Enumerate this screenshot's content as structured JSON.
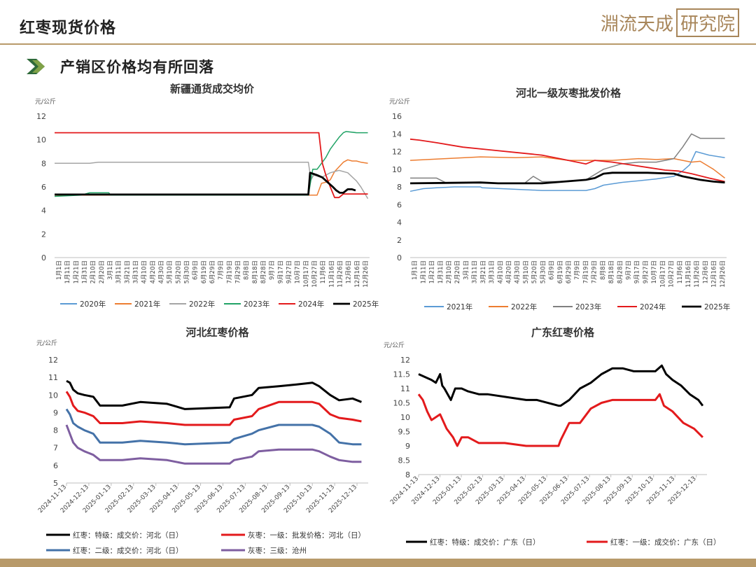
{
  "header": {
    "title": "红枣现货价格",
    "logo_text": "淵流天成",
    "logo_box_text": "研究院"
  },
  "subheading": {
    "text": "产销区价格均有所回落"
  },
  "chart_data": [
    {
      "id": "xj",
      "type": "line",
      "title": "新疆通货成交均价",
      "ylabel": "元/公斤",
      "ylim": [
        0,
        12
      ],
      "yticks": [
        0,
        2,
        4,
        6,
        8,
        10,
        12
      ],
      "grid": false,
      "legend": "bottom",
      "x_tick_labels": [
        "1月1日",
        "1月11日",
        "1月21日",
        "1月31日",
        "2月10日",
        "2月20日",
        "3月1日",
        "3月11日",
        "3月21日",
        "3月31日",
        "4月10日",
        "4月20日",
        "4月30日",
        "5月10日",
        "5月20日",
        "5月30日",
        "6月9日",
        "6月19日",
        "6月29日",
        "7月9日",
        "7月19日",
        "7月29日",
        "8月8日",
        "8月18日",
        "8月28日",
        "9月7日",
        "9月17日",
        "9月27日",
        "10月7日",
        "10月17日",
        "10月27日",
        "11月6日",
        "11月16日",
        "11月26日",
        "12月6日",
        "12月16日",
        "12月26日"
      ],
      "x_domain": [
        0,
        360
      ],
      "series": [
        {
          "name": "2020年",
          "color": "#5b9bd5",
          "width": 1.5,
          "x": [
            0
          ],
          "y": [
            5.3
          ]
        },
        {
          "name": "2021年",
          "color": "#ed7d31",
          "width": 1.5,
          "x": [
            0,
            300,
            305,
            310,
            315,
            320,
            325,
            330,
            335,
            340,
            345,
            350,
            358
          ],
          "y": [
            5.3,
            5.3,
            6.3,
            6.4,
            6.6,
            7.3,
            7.7,
            8.1,
            8.3,
            8.2,
            8.2,
            8.1,
            8.0
          ]
        },
        {
          "name": "2022年",
          "color": "#a5a5a5",
          "width": 1.5,
          "x": [
            0,
            40,
            50,
            60,
            290,
            293,
            296,
            305,
            315,
            325,
            335,
            345,
            350,
            358
          ],
          "y": [
            8.0,
            8.0,
            8.1,
            8.1,
            8.1,
            6.6,
            7.0,
            6.8,
            7.2,
            7.4,
            7.2,
            6.5,
            6.0,
            5.0
          ]
        },
        {
          "name": "2023年",
          "color": "#21a366",
          "width": 1.5,
          "x": [
            0,
            30,
            40,
            62,
            64,
            290,
            295,
            300,
            305,
            310,
            315,
            320,
            325,
            330,
            333,
            345,
            358
          ],
          "y": [
            5.2,
            5.3,
            5.5,
            5.5,
            5.3,
            5.3,
            7.5,
            7.5,
            8.0,
            8.5,
            9.2,
            9.7,
            10.2,
            10.6,
            10.7,
            10.6,
            10.6
          ]
        },
        {
          "name": "2024年",
          "color": "#e31a1c",
          "width": 1.8,
          "x": [
            0,
            302,
            306,
            310,
            315,
            320,
            325,
            330,
            340,
            358
          ],
          "y": [
            10.6,
            10.6,
            8.0,
            7.0,
            6.0,
            5.1,
            5.1,
            5.4,
            5.4,
            5.4
          ]
        },
        {
          "name": "2025年",
          "color": "#000000",
          "width": 2.8,
          "x": [
            0,
            290,
            292,
            296,
            300,
            306,
            312,
            318,
            322,
            326,
            330,
            335,
            340,
            344
          ],
          "y": [
            5.35,
            5.35,
            7.2,
            7.1,
            7.0,
            6.8,
            6.4,
            6.0,
            5.7,
            5.5,
            5.5,
            5.8,
            5.8,
            5.7
          ]
        }
      ]
    },
    {
      "id": "hb1",
      "type": "line",
      "title": "河北一级灰枣批发价格",
      "ylabel": "元/公斤",
      "ylim": [
        0,
        16
      ],
      "yticks": [
        0,
        2,
        4,
        6,
        8,
        10,
        12,
        14,
        16
      ],
      "grid": false,
      "legend": "bottom",
      "x_tick_labels": [
        "1月1日",
        "1月11日",
        "1月21日",
        "1月31日",
        "2月10日",
        "2月20日",
        "3月1日",
        "3月11日",
        "3月21日",
        "3月31日",
        "4月10日",
        "4月20日",
        "4月30日",
        "5月10日",
        "5月20日",
        "5月30日",
        "6月9日",
        "6月19日",
        "6月29日",
        "7月9日",
        "7月19日",
        "7月29日",
        "8月8日",
        "8月18日",
        "8月28日",
        "9月7日",
        "9月17日",
        "9月27日",
        "10月7日",
        "10月17日",
        "10月27日",
        "11月6日",
        "11月16日",
        "11月26日",
        "12月6日",
        "12月16日",
        "12月26日"
      ],
      "x_domain": [
        0,
        360
      ],
      "series": [
        {
          "name": "2021年",
          "color": "#5b9bd5",
          "width": 1.5,
          "x": [
            0,
            15,
            30,
            50,
            80,
            82,
            150,
            200,
            210,
            220,
            240,
            260,
            280,
            300,
            310,
            318,
            325,
            340,
            358
          ],
          "y": [
            7.5,
            7.8,
            7.9,
            8.0,
            8.0,
            7.9,
            7.6,
            7.6,
            7.8,
            8.2,
            8.5,
            8.7,
            8.9,
            9.2,
            9.8,
            10.5,
            12.0,
            11.6,
            11.3
          ]
        },
        {
          "name": "2022年",
          "color": "#ed7d31",
          "width": 1.5,
          "x": [
            0,
            40,
            80,
            120,
            150,
            180,
            200,
            230,
            260,
            280,
            300,
            305,
            320,
            330,
            345,
            358
          ],
          "y": [
            11.0,
            11.2,
            11.4,
            11.3,
            11.4,
            11.0,
            11.0,
            11.0,
            11.2,
            11.1,
            11.2,
            11.1,
            10.8,
            10.9,
            10.0,
            9.0
          ]
        },
        {
          "name": "2023年",
          "color": "#808080",
          "width": 1.5,
          "x": [
            0,
            30,
            40,
            60,
            100,
            130,
            140,
            150,
            180,
            200,
            220,
            240,
            260,
            280,
            300,
            310,
            320,
            330,
            340,
            358
          ],
          "y": [
            9.0,
            9.0,
            8.5,
            8.5,
            8.4,
            8.4,
            9.2,
            8.6,
            8.6,
            8.8,
            10.0,
            10.6,
            10.8,
            10.8,
            11.2,
            12.5,
            14.0,
            13.5,
            13.5,
            13.5
          ]
        },
        {
          "name": "2024年",
          "color": "#e31a1c",
          "width": 1.8,
          "x": [
            0,
            10,
            30,
            60,
            90,
            120,
            150,
            180,
            200,
            210,
            230,
            250,
            270,
            290,
            305,
            320,
            340,
            358
          ],
          "y": [
            13.4,
            13.3,
            13.0,
            12.5,
            12.2,
            11.9,
            11.6,
            11.0,
            10.6,
            11.0,
            10.8,
            10.5,
            10.2,
            9.9,
            9.8,
            9.5,
            9.0,
            8.6
          ]
        },
        {
          "name": "2025年",
          "color": "#000000",
          "width": 2.8,
          "x": [
            0,
            80,
            100,
            150,
            200,
            210,
            220,
            230,
            240,
            270,
            300,
            310,
            320,
            330,
            345,
            358
          ],
          "y": [
            8.4,
            8.5,
            8.4,
            8.4,
            8.8,
            9.0,
            9.5,
            9.6,
            9.6,
            9.6,
            9.5,
            9.2,
            9.0,
            8.8,
            8.6,
            8.5
          ]
        }
      ]
    },
    {
      "id": "hbhz",
      "type": "line",
      "title": "河北红枣价格",
      "ylabel": "元/公斤",
      "ylim": [
        5,
        12
      ],
      "yticks": [
        5,
        6,
        7,
        8,
        9,
        10,
        11,
        12
      ],
      "grid": false,
      "legend": "bottom",
      "x_tick_labels": [
        "2024-11-13",
        "2024-12-13",
        "2025-01-13",
        "2025-02-13",
        "2025-03-13",
        "2025-04-13",
        "2025-05-13",
        "2025-06-13",
        "2025-07-13",
        "2025-08-13",
        "2025-09-13",
        "2025-10-13",
        "2025-11-13",
        "2025-12-13"
      ],
      "x_domain": [
        0,
        13.5
      ],
      "series": [
        {
          "name": "红枣：特级：成交价：河北（日）",
          "color": "#000000",
          "width": 3,
          "x": [
            0,
            0.15,
            0.3,
            0.5,
            0.8,
            1.2,
            1.5,
            2.5,
            3.3,
            4.5,
            5.3,
            7.3,
            7.5,
            8.3,
            8.6,
            9.5,
            10.3,
            11.0,
            11.3,
            11.8,
            12.2,
            12.8,
            13.2
          ],
          "y": [
            10.8,
            10.7,
            10.3,
            10.1,
            10.0,
            9.9,
            9.4,
            9.4,
            9.6,
            9.5,
            9.2,
            9.3,
            9.8,
            10.0,
            10.4,
            10.5,
            10.6,
            10.7,
            10.5,
            10.0,
            9.7,
            9.8,
            9.6
          ]
        },
        {
          "name": "灰枣：一级：批发价格：河北（日）",
          "color": "#e31a1c",
          "width": 3,
          "x": [
            0,
            0.15,
            0.3,
            0.5,
            0.8,
            1.2,
            1.5,
            2.5,
            3.3,
            4.5,
            5.3,
            7.3,
            7.5,
            8.3,
            8.6,
            9.5,
            10.3,
            11.0,
            11.3,
            11.8,
            12.2,
            12.8,
            13.2
          ],
          "y": [
            10.2,
            9.9,
            9.4,
            9.1,
            9.0,
            8.8,
            8.4,
            8.4,
            8.5,
            8.4,
            8.3,
            8.3,
            8.6,
            8.8,
            9.2,
            9.6,
            9.6,
            9.6,
            9.5,
            8.9,
            8.7,
            8.6,
            8.5
          ]
        },
        {
          "name": "红枣：二级：成交价：河北（日）",
          "color": "#4472a8",
          "width": 3,
          "x": [
            0,
            0.15,
            0.3,
            0.5,
            0.8,
            1.2,
            1.5,
            2.5,
            3.3,
            4.5,
            5.3,
            7.3,
            7.5,
            8.3,
            8.6,
            9.5,
            10.3,
            11.0,
            11.3,
            11.8,
            12.2,
            12.8,
            13.2
          ],
          "y": [
            9.2,
            8.9,
            8.4,
            8.2,
            8.0,
            7.8,
            7.3,
            7.3,
            7.4,
            7.3,
            7.2,
            7.3,
            7.5,
            7.8,
            8.0,
            8.3,
            8.3,
            8.3,
            8.2,
            7.8,
            7.3,
            7.2,
            7.2
          ]
        },
        {
          "name": "灰枣：三级：沧州",
          "color": "#7e5ea0",
          "width": 3,
          "x": [
            0,
            0.15,
            0.3,
            0.5,
            0.8,
            1.2,
            1.5,
            2.5,
            3.3,
            4.5,
            5.3,
            7.3,
            7.5,
            8.3,
            8.6,
            9.5,
            10.3,
            11.0,
            11.3,
            11.8,
            12.2,
            12.8,
            13.2
          ],
          "y": [
            8.3,
            7.8,
            7.3,
            7.0,
            6.8,
            6.6,
            6.3,
            6.3,
            6.4,
            6.3,
            6.1,
            6.1,
            6.3,
            6.5,
            6.8,
            6.9,
            6.9,
            6.9,
            6.8,
            6.5,
            6.3,
            6.2,
            6.2
          ]
        }
      ]
    },
    {
      "id": "gd",
      "type": "line",
      "title": "广东红枣价格",
      "ylabel": "元/公斤",
      "ylim": [
        8,
        12
      ],
      "yticks": [
        8,
        8.5,
        9,
        9.5,
        10,
        10.5,
        11,
        11.5,
        12
      ],
      "grid": false,
      "legend": "bottom",
      "x_tick_labels": [
        "2024-11-13",
        "2024-12-13",
        "2025-01-13",
        "2025-02-13",
        "2025-03-13",
        "2025-04-13",
        "2025-05-13",
        "2025-06-13",
        "2025-07-13",
        "2025-08-13",
        "2025-09-13",
        "2025-10-13",
        "2025-11-13",
        "2025-12-13"
      ],
      "x_domain": [
        0,
        13.4
      ],
      "series": [
        {
          "name": "红枣：特级：成交价：广东（日）",
          "color": "#000000",
          "width": 3,
          "x": [
            0,
            0.3,
            0.6,
            0.8,
            1.0,
            1.1,
            1.2,
            1.5,
            1.7,
            2.0,
            2.3,
            2.8,
            3.2,
            5.0,
            5.5,
            6.5,
            6.6,
            7.0,
            7.5,
            8.0,
            8.5,
            9.0,
            9.5,
            10.0,
            10.5,
            11.0,
            11.3,
            11.5,
            11.8,
            12.2,
            12.6,
            13.0,
            13.2
          ],
          "y": [
            11.5,
            11.4,
            11.3,
            11.2,
            11.5,
            11.1,
            11.0,
            10.6,
            11.0,
            11.0,
            10.9,
            10.8,
            10.8,
            10.6,
            10.6,
            10.4,
            10.4,
            10.6,
            11.0,
            11.2,
            11.5,
            11.7,
            11.7,
            11.6,
            11.6,
            11.6,
            11.8,
            11.5,
            11.3,
            11.1,
            10.8,
            10.6,
            10.4
          ]
        },
        {
          "name": "红枣：一级：成交价：广东（日）",
          "color": "#e31a1c",
          "width": 3,
          "x": [
            0,
            0.2,
            0.4,
            0.6,
            0.8,
            1.0,
            1.3,
            1.6,
            1.8,
            2.0,
            2.3,
            2.8,
            3.2,
            4.0,
            5.0,
            6.0,
            6.5,
            6.6,
            7.0,
            7.5,
            8.0,
            8.5,
            9.0,
            10.0,
            11.0,
            11.2,
            11.4,
            11.8,
            12.3,
            12.8,
            13.2
          ],
          "y": [
            10.8,
            10.6,
            10.2,
            9.9,
            10.0,
            10.1,
            9.6,
            9.3,
            9.0,
            9.3,
            9.3,
            9.1,
            9.1,
            9.1,
            9.0,
            9.0,
            9.0,
            9.2,
            9.8,
            9.8,
            10.3,
            10.5,
            10.6,
            10.6,
            10.6,
            10.8,
            10.4,
            10.2,
            9.8,
            9.6,
            9.3
          ]
        }
      ]
    }
  ]
}
